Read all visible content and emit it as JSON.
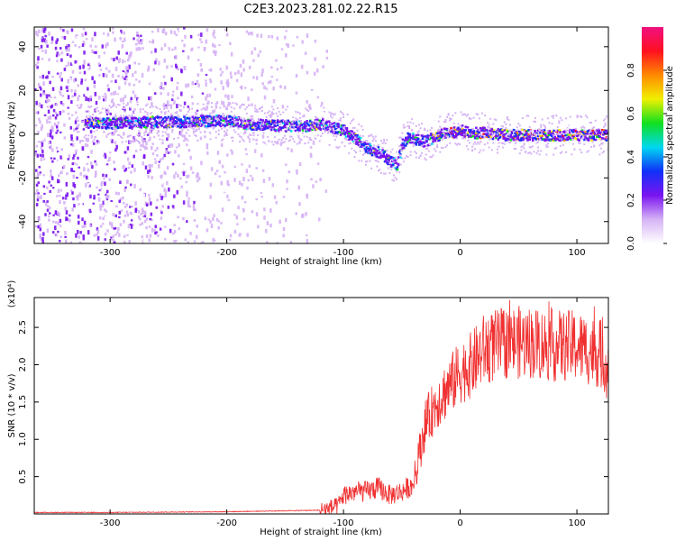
{
  "title": "C2E3.2023.281.02.22.R15",
  "chart_data": [
    {
      "type": "heatmap",
      "xlabel": "Height of straight line (km)",
      "ylabel": "Frequency (Hz)",
      "xlim": [
        -365,
        127
      ],
      "ylim": [
        -50,
        49
      ],
      "xticks": [
        -300,
        -200,
        -100,
        0,
        100
      ],
      "yticks": [
        -40,
        -20,
        0,
        20,
        40
      ],
      "colorbar": {
        "label": "Normalized spectral amplitude",
        "range": [
          0.0,
          1.0
        ],
        "ticks": [
          "0.0",
          "0.2",
          "0.4",
          "0.6",
          "0.8"
        ],
        "tick_values": [
          0.0,
          0.2,
          0.4,
          0.6,
          0.8
        ],
        "colors": [
          "#ffffff",
          "#d6b3f5",
          "#7a14f0",
          "#1030f8",
          "#00d8f0",
          "#10e020",
          "#f0f000",
          "#ff8a00",
          "#ff1020",
          "#f01080"
        ]
      },
      "ridge": {
        "x": [
          -320,
          -300,
          -280,
          -260,
          -240,
          -220,
          -200,
          -180,
          -160,
          -140,
          -120,
          -100,
          -90,
          -80,
          -70,
          -60,
          -55,
          -50,
          -45,
          -40,
          -30,
          -20,
          -10,
          0,
          10,
          20,
          40,
          60,
          80,
          100,
          127
        ],
        "y": [
          5.5,
          5.5,
          6,
          6,
          6,
          6.5,
          6.5,
          5,
          4.5,
          4,
          5,
          2,
          -2,
          -6,
          -8,
          -12,
          -14,
          -4,
          -1,
          -2,
          -3,
          0,
          1,
          2,
          1,
          1,
          0,
          0,
          0,
          0,
          0
        ]
      },
      "grid": false
    },
    {
      "type": "line",
      "xlabel": "Height of straight line (km)",
      "ylabel": "SNR (10 * v/v)",
      "y_multiplier": "(x10⁴)",
      "xlim": [
        -365,
        127
      ],
      "ylim": [
        0,
        2.9
      ],
      "xticks": [
        -300,
        -200,
        -100,
        0,
        100
      ],
      "yticks": [
        0.5,
        1.0,
        1.5,
        2.0,
        2.5
      ],
      "color": "#f03030",
      "envelope": {
        "x": [
          -365,
          -300,
          -200,
          -120,
          -105,
          -100,
          -90,
          -80,
          -70,
          -60,
          -50,
          -40,
          -35,
          -30,
          -20,
          -10,
          0,
          10,
          20,
          30,
          40,
          60,
          80,
          100,
          120,
          127
        ],
        "y": [
          0.02,
          0.02,
          0.03,
          0.05,
          0.1,
          0.25,
          0.3,
          0.3,
          0.35,
          0.25,
          0.3,
          0.4,
          0.8,
          1.2,
          1.5,
          1.7,
          1.9,
          2.0,
          2.2,
          2.25,
          2.3,
          2.3,
          2.25,
          2.25,
          2.15,
          1.95
        ]
      }
    }
  ]
}
